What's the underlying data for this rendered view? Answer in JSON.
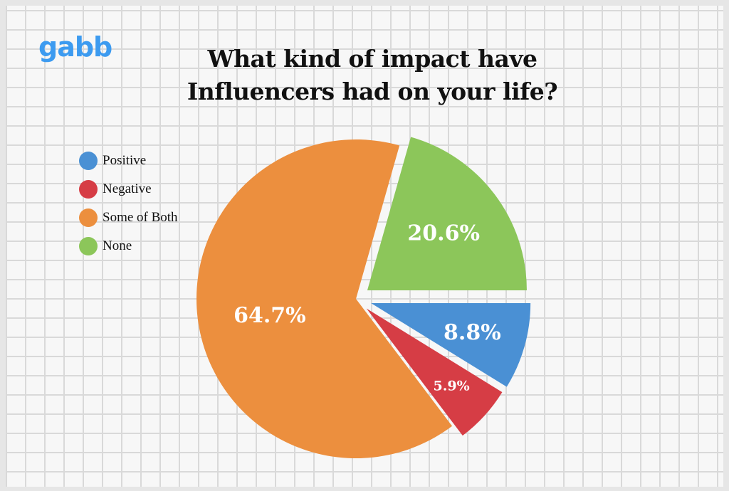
{
  "brand": "gabb",
  "chart_data": {
    "type": "pie",
    "title": "What kind of impact have Influencers had on your life?",
    "categories": [
      "Positive",
      "Negative",
      "Some of Both",
      "None"
    ],
    "values": [
      8.8,
      5.9,
      64.7,
      20.6
    ],
    "labels": [
      "8.8%",
      "5.9%",
      "64.7%",
      "20.6%"
    ],
    "colors": [
      "#4a90d4",
      "#d63d45",
      "#ec8f3e",
      "#8cc65a"
    ],
    "legend_position": "top-left",
    "start_angle": "3 o'clock, clockwise",
    "exploded": true
  }
}
